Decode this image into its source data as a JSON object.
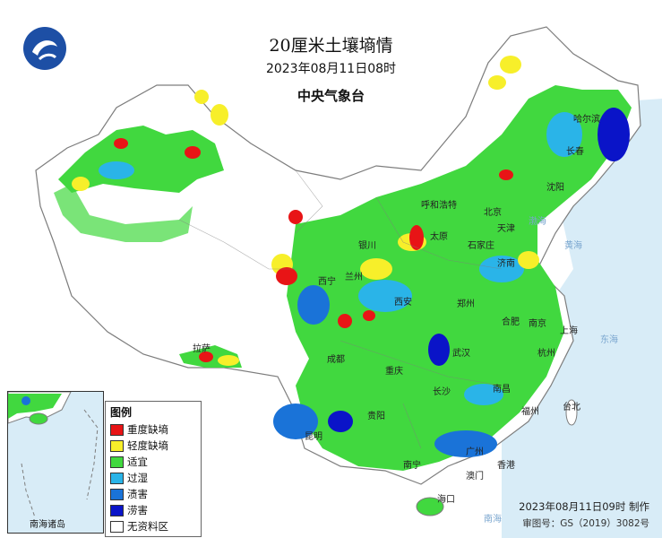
{
  "title": "20厘米土壤墒情",
  "subtitle": "2023年08月11日08时",
  "issuer": "中央气象台",
  "legend": {
    "title": "图例",
    "items": [
      {
        "label": "重度缺墒",
        "color": "#e81416"
      },
      {
        "label": "轻度缺墒",
        "color": "#f7ef2a"
      },
      {
        "label": "适宜",
        "color": "#41d83f"
      },
      {
        "label": "过湿",
        "color": "#2ab4e8"
      },
      {
        "label": "渍害",
        "color": "#1a73d8"
      },
      {
        "label": "涝害",
        "color": "#0a14c8"
      },
      {
        "label": "无资料区",
        "color": "#ffffff"
      }
    ]
  },
  "inset_label": "南海诸岛",
  "footer": {
    "made": "2023年08月11日09时 制作",
    "approval": "审图号：GS（2019）3082号"
  },
  "cities": [
    "哈尔滨",
    "长春",
    "沈阳",
    "北京",
    "天津",
    "石家庄",
    "济南",
    "太原",
    "郑州",
    "西安",
    "银川",
    "西宁",
    "兰州",
    "呼和浩特",
    "南京",
    "上海",
    "合肥",
    "武汉",
    "杭州",
    "南昌",
    "长沙",
    "重庆",
    "成都",
    "贵阳",
    "昆明",
    "南宁",
    "广州",
    "福州",
    "海口",
    "拉萨",
    "台北",
    "香港",
    "澳门"
  ],
  "seas": [
    "渤海",
    "黄海",
    "东海",
    "南海"
  ],
  "colors": {
    "sea": "#d8ecf7",
    "border": "#8a8a8a",
    "land_blank": "#ffffff"
  }
}
